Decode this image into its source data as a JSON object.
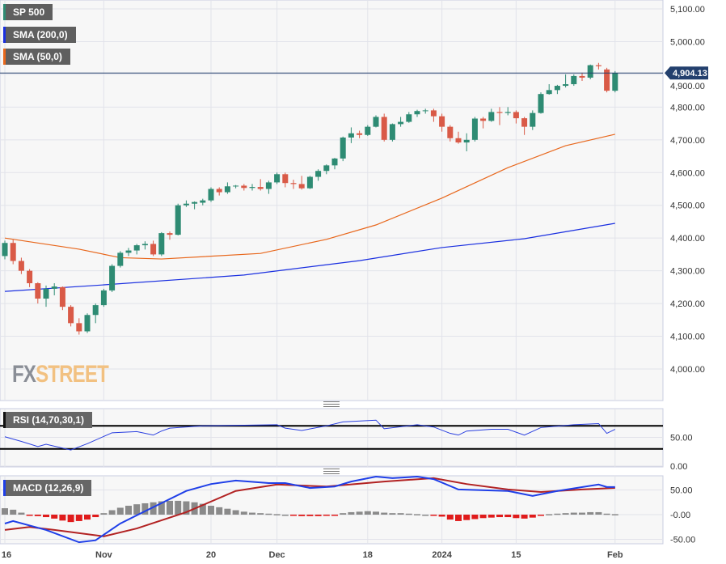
{
  "legend": {
    "main_series": {
      "label": "SP 500",
      "color": "#2e8b73"
    },
    "sma200": {
      "label": "SMA (200,0)",
      "color": "#1a2fe0"
    },
    "sma50": {
      "label": "SMA (50,0)",
      "color": "#e8671c"
    }
  },
  "watermark": {
    "part1": "FX",
    "part2": "STREET"
  },
  "last_price": {
    "label": "4,904.13",
    "value": 4904.13,
    "color": "#23406e"
  },
  "colors": {
    "up": "#2e8b73",
    "down": "#d95a47",
    "rsi": "#2a3fe0",
    "macd": "#1f3fe8",
    "signal": "#b22222",
    "hist_pos": "#8a8a8a",
    "hist_neg": "#e01b1b"
  },
  "chart_data": [
    {
      "type": "candlestick",
      "title": "SP 500",
      "ylim": [
        3920,
        5120
      ],
      "y_ticks": [
        "4,000.00",
        "4,100.00",
        "4,200.00",
        "4,300.00",
        "4,400.00",
        "4,500.00",
        "4,600.00",
        "4,700.00",
        "4,800.00",
        "4,900.00",
        "5,000.00",
        "5,100.00"
      ],
      "y_tick_values": [
        4000,
        4100,
        4200,
        4300,
        4400,
        4500,
        4600,
        4700,
        4800,
        4900,
        5000,
        5100
      ],
      "x_ticks": [
        {
          "label": "16",
          "date": "2023-10-16"
        },
        {
          "label": "Nov",
          "date": "2023-11-01"
        },
        {
          "label": "20",
          "date": "2023-11-20"
        },
        {
          "label": "Dec",
          "date": "2023-12-01"
        },
        {
          "label": "18",
          "date": "2023-12-18"
        },
        {
          "label": "2024",
          "date": "2024-01-02"
        },
        {
          "label": "15",
          "date": "2024-01-16"
        },
        {
          "label": "Feb",
          "date": "2024-02-01"
        }
      ],
      "grid": true,
      "dates": [
        "2023-10-16",
        "2023-10-17",
        "2023-10-18",
        "2023-10-19",
        "2023-10-20",
        "2023-10-23",
        "2023-10-24",
        "2023-10-25",
        "2023-10-26",
        "2023-10-27",
        "2023-10-30",
        "2023-10-31",
        "2023-11-01",
        "2023-11-02",
        "2023-11-03",
        "2023-11-06",
        "2023-11-07",
        "2023-11-08",
        "2023-11-09",
        "2023-11-10",
        "2023-11-13",
        "2023-11-14",
        "2023-11-15",
        "2023-11-16",
        "2023-11-17",
        "2023-11-20",
        "2023-11-21",
        "2023-11-22",
        "2023-11-24",
        "2023-11-27",
        "2023-11-28",
        "2023-11-29",
        "2023-11-30",
        "2023-12-01",
        "2023-12-04",
        "2023-12-05",
        "2023-12-06",
        "2023-12-07",
        "2023-12-08",
        "2023-12-11",
        "2023-12-12",
        "2023-12-13",
        "2023-12-14",
        "2023-12-15",
        "2023-12-18",
        "2023-12-19",
        "2023-12-20",
        "2023-12-21",
        "2023-12-22",
        "2023-12-26",
        "2023-12-27",
        "2023-12-28",
        "2023-12-29",
        "2024-01-02",
        "2024-01-03",
        "2024-01-04",
        "2024-01-05",
        "2024-01-08",
        "2024-01-09",
        "2024-01-10",
        "2024-01-11",
        "2024-01-12",
        "2024-01-16",
        "2024-01-17",
        "2024-01-18",
        "2024-01-19",
        "2024-01-22",
        "2024-01-23",
        "2024-01-24",
        "2024-01-25",
        "2024-01-26",
        "2024-01-29",
        "2024-01-30",
        "2024-01-31",
        "2024-02-01"
      ],
      "ohlc": [
        [
          4345,
          4392,
          4335,
          4385
        ],
        [
          4385,
          4395,
          4320,
          4330
        ],
        [
          4330,
          4340,
          4290,
          4300
        ],
        [
          4300,
          4305,
          4250,
          4262
        ],
        [
          4262,
          4265,
          4200,
          4215
        ],
        [
          4215,
          4255,
          4190,
          4245
        ],
        [
          4245,
          4262,
          4225,
          4252
        ],
        [
          4250,
          4252,
          4180,
          4190
        ],
        [
          4190,
          4195,
          4130,
          4140
        ],
        [
          4140,
          4155,
          4105,
          4115
        ],
        [
          4115,
          4170,
          4110,
          4165
        ],
        [
          4165,
          4200,
          4140,
          4195
        ],
        [
          4195,
          4245,
          4190,
          4240
        ],
        [
          4240,
          4320,
          4235,
          4315
        ],
        [
          4315,
          4360,
          4310,
          4355
        ],
        [
          4355,
          4370,
          4345,
          4362
        ],
        [
          4362,
          4382,
          4350,
          4378
        ],
        [
          4378,
          4390,
          4365,
          4382
        ],
        [
          4382,
          4392,
          4345,
          4350
        ],
        [
          4350,
          4418,
          4345,
          4415
        ],
        [
          4415,
          4420,
          4395,
          4410
        ],
        [
          4410,
          4505,
          4408,
          4500
        ],
        [
          4500,
          4515,
          4495,
          4505
        ],
        [
          4505,
          4512,
          4488,
          4510
        ],
        [
          4508,
          4520,
          4500,
          4515
        ],
        [
          4515,
          4555,
          4510,
          4550
        ],
        [
          4550,
          4555,
          4530,
          4540
        ],
        [
          4540,
          4570,
          4535,
          4558
        ],
        [
          4558,
          4562,
          4552,
          4560
        ],
        [
          4560,
          4565,
          4545,
          4553
        ],
        [
          4553,
          4565,
          4545,
          4556
        ],
        [
          4556,
          4580,
          4545,
          4550
        ],
        [
          4550,
          4575,
          4535,
          4570
        ],
        [
          4570,
          4600,
          4565,
          4595
        ],
        [
          4595,
          4600,
          4555,
          4568
        ],
        [
          4568,
          4578,
          4550,
          4565
        ],
        [
          4565,
          4590,
          4548,
          4552
        ],
        [
          4552,
          4590,
          4550,
          4587
        ],
        [
          4587,
          4610,
          4575,
          4605
        ],
        [
          4605,
          4625,
          4595,
          4622
        ],
        [
          4622,
          4645,
          4610,
          4643
        ],
        [
          4643,
          4710,
          4635,
          4707
        ],
        [
          4707,
          4738,
          4690,
          4720
        ],
        [
          4720,
          4728,
          4705,
          4715
        ],
        [
          4715,
          4745,
          4712,
          4740
        ],
        [
          4740,
          4775,
          4738,
          4770
        ],
        [
          4770,
          4780,
          4695,
          4700
        ],
        [
          4700,
          4750,
          4695,
          4748
        ],
        [
          4748,
          4770,
          4740,
          4755
        ],
        [
          4755,
          4785,
          4752,
          4778
        ],
        [
          4778,
          4792,
          4770,
          4788
        ],
        [
          4788,
          4795,
          4780,
          4790
        ],
        [
          4790,
          4795,
          4755,
          4772
        ],
        [
          4772,
          4780,
          4725,
          4740
        ],
        [
          4740,
          4745,
          4695,
          4705
        ],
        [
          4705,
          4725,
          4688,
          4692
        ],
        [
          4692,
          4720,
          4665,
          4700
        ],
        [
          4700,
          4770,
          4695,
          4765
        ],
        [
          4765,
          4770,
          4735,
          4758
        ],
        [
          4758,
          4795,
          4755,
          4785
        ],
        [
          4785,
          4800,
          4745,
          4782
        ],
        [
          4782,
          4800,
          4775,
          4785
        ],
        [
          4785,
          4790,
          4750,
          4766
        ],
        [
          4766,
          4770,
          4715,
          4740
        ],
        [
          4740,
          4790,
          4730,
          4782
        ],
        [
          4782,
          4845,
          4780,
          4840
        ],
        [
          4840,
          4870,
          4838,
          4852
        ],
        [
          4852,
          4868,
          4840,
          4865
        ],
        [
          4865,
          4900,
          4860,
          4870
        ],
        [
          4870,
          4900,
          4865,
          4895
        ],
        [
          4895,
          4905,
          4880,
          4890
        ],
        [
          4890,
          4930,
          4885,
          4928
        ],
        [
          4928,
          4935,
          4915,
          4925
        ],
        [
          4915,
          4920,
          4845,
          4850
        ],
        [
          4850,
          4910,
          4845,
          4904.13
        ]
      ],
      "sma200": [
        [
          "2023-10-16",
          4237
        ],
        [
          "2023-11-01",
          4257
        ],
        [
          "2023-11-27",
          4287
        ],
        [
          "2023-12-15",
          4331
        ],
        [
          "2024-01-02",
          4371
        ],
        [
          "2024-01-17",
          4398
        ],
        [
          "2024-02-01",
          4445
        ]
      ],
      "sma50": [
        [
          "2023-10-16",
          4400
        ],
        [
          "2023-10-27",
          4366
        ],
        [
          "2023-11-03",
          4340
        ],
        [
          "2023-11-10",
          4336
        ],
        [
          "2023-11-29",
          4353
        ],
        [
          "2023-12-11",
          4396
        ],
        [
          "2023-12-19",
          4440
        ],
        [
          "2024-01-02",
          4522
        ],
        [
          "2024-01-12",
          4615
        ],
        [
          "2024-01-24",
          4682
        ],
        [
          "2024-02-01",
          4717
        ]
      ]
    },
    {
      "type": "line",
      "title": "RSI (14,70,30,1)",
      "ylim": [
        0,
        100
      ],
      "y_ticks": [
        "50.00",
        "0.00"
      ],
      "y_tick_values": [
        50,
        0
      ],
      "levels": [
        70,
        30
      ],
      "values": [
        [
          "2023-10-16",
          51
        ],
        [
          "2023-10-18",
          43
        ],
        [
          "2023-10-20",
          34
        ],
        [
          "2023-10-23",
          38
        ],
        [
          "2023-10-26",
          28
        ],
        [
          "2023-10-30",
          39
        ],
        [
          "2023-11-02",
          58
        ],
        [
          "2023-11-07",
          60
        ],
        [
          "2023-11-09",
          54
        ],
        [
          "2023-11-10",
          61
        ],
        [
          "2023-11-13",
          66
        ],
        [
          "2023-11-17",
          70
        ],
        [
          "2023-12-01",
          72
        ],
        [
          "2023-12-04",
          66
        ],
        [
          "2023-12-06",
          62
        ],
        [
          "2023-12-11",
          70
        ],
        [
          "2023-12-13",
          77
        ],
        [
          "2023-12-19",
          80
        ],
        [
          "2023-12-20",
          65
        ],
        [
          "2023-12-27",
          72
        ],
        [
          "2023-12-29",
          68
        ],
        [
          "2024-01-03",
          57
        ],
        [
          "2024-01-04",
          54
        ],
        [
          "2024-01-05",
          61
        ],
        [
          "2024-01-10",
          64
        ],
        [
          "2024-01-12",
          64
        ],
        [
          "2024-01-17",
          54
        ],
        [
          "2024-01-19",
          67
        ],
        [
          "2024-01-25",
          72
        ],
        [
          "2024-01-30",
          74
        ],
        [
          "2024-01-31",
          57
        ],
        [
          "2024-02-01",
          64
        ]
      ]
    },
    {
      "type": "bar+line",
      "title": "MACD (12,26,9)",
      "ylim": [
        -55,
        85
      ],
      "y_ticks": [
        "50.00",
        "-0.00",
        "-50.00"
      ],
      "y_tick_values": [
        50,
        0,
        -50
      ],
      "macd": [
        [
          "2023-10-16",
          -18
        ],
        [
          "2023-10-17",
          -13
        ],
        [
          "2023-10-23",
          -31
        ],
        [
          "2023-10-27",
          -56
        ],
        [
          "2023-10-31",
          -52
        ],
        [
          "2023-11-03",
          -18
        ],
        [
          "2023-11-08",
          7
        ],
        [
          "2023-11-15",
          48
        ],
        [
          "2023-11-20",
          62
        ],
        [
          "2023-11-24",
          69
        ],
        [
          "2023-11-30",
          64
        ],
        [
          "2023-12-04",
          64
        ],
        [
          "2023-12-07",
          54
        ],
        [
          "2023-12-12",
          57
        ],
        [
          "2023-12-14",
          67
        ],
        [
          "2023-12-19",
          77
        ],
        [
          "2023-12-21",
          74
        ],
        [
          "2023-12-27",
          77
        ],
        [
          "2023-12-29",
          72
        ],
        [
          "2024-01-04",
          51
        ],
        [
          "2024-01-12",
          48
        ],
        [
          "2024-01-18",
          38
        ],
        [
          "2024-01-23",
          48
        ],
        [
          "2024-01-30",
          61
        ],
        [
          "2024-01-31",
          56
        ],
        [
          "2024-02-01",
          56
        ]
      ],
      "signal": [
        [
          "2023-10-16",
          -31
        ],
        [
          "2023-10-19",
          -25
        ],
        [
          "2023-10-24",
          -31
        ],
        [
          "2023-11-01",
          -44
        ],
        [
          "2023-11-07",
          -28
        ],
        [
          "2023-11-15",
          5
        ],
        [
          "2023-11-24",
          48
        ],
        [
          "2023-12-01",
          61
        ],
        [
          "2023-12-11",
          57
        ],
        [
          "2023-12-20",
          67
        ],
        [
          "2023-12-29",
          74
        ],
        [
          "2024-01-05",
          62
        ],
        [
          "2024-01-12",
          51
        ],
        [
          "2024-01-19",
          46
        ],
        [
          "2024-01-26",
          51
        ],
        [
          "2024-02-01",
          54
        ]
      ],
      "histogram": [
        13,
        10,
        4,
        -1,
        -3,
        -5,
        -8,
        -12,
        -15,
        -13,
        -10,
        -5,
        3,
        9,
        14,
        18,
        21,
        23,
        25,
        27,
        28,
        28,
        27,
        25,
        22,
        18,
        15,
        12,
        9,
        6,
        4,
        3,
        2,
        1,
        0,
        -1,
        -3,
        -3,
        -3,
        -2,
        -1,
        3,
        5,
        6,
        7,
        6,
        4,
        3,
        3,
        2,
        1,
        0,
        -1,
        -4,
        -10,
        -13,
        -11,
        -9,
        -7,
        -6,
        -5,
        -5,
        -7,
        -8,
        -6,
        -2,
        1,
        2,
        3,
        4,
        4,
        5,
        5,
        2,
        1
      ]
    }
  ]
}
